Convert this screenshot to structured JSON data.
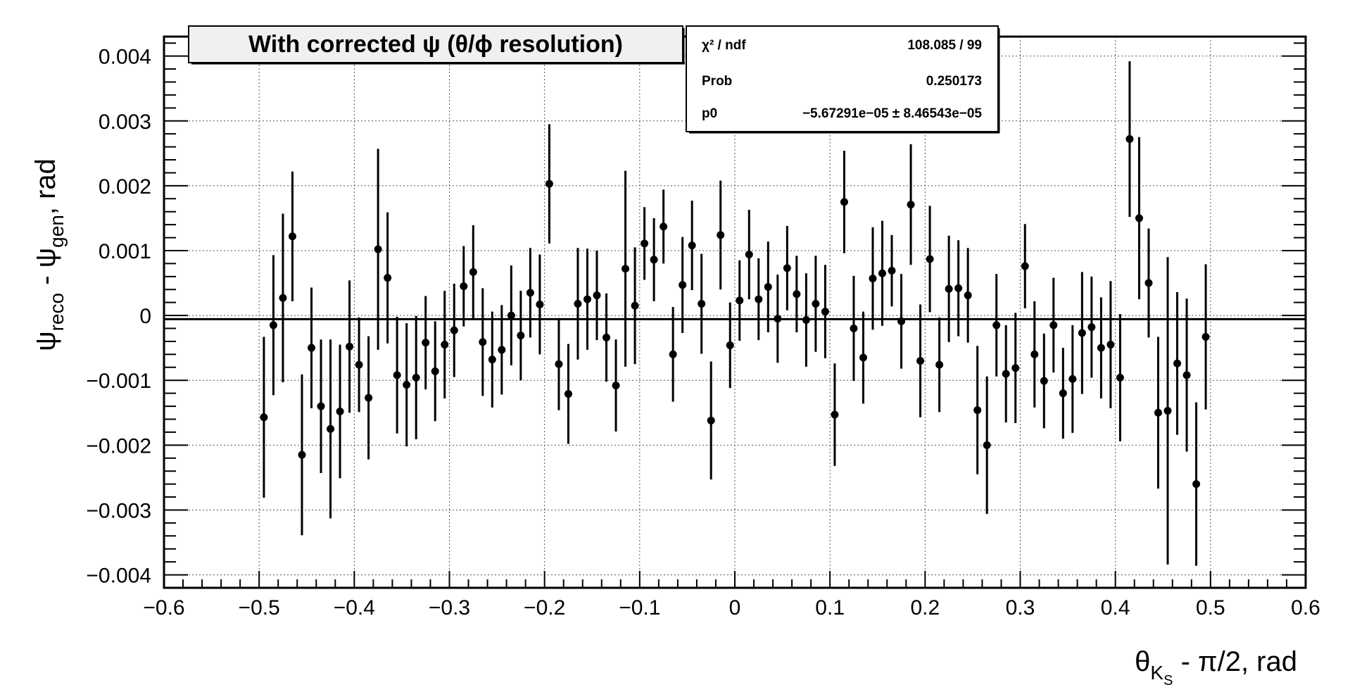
{
  "chart_data": {
    "type": "scatter",
    "title": "With corrected ψ (θ/ϕ resolution)",
    "xlabel": {
      "base": "θ",
      "sub": "K",
      "subsub": "S",
      "rest": " - π/2, rad"
    },
    "ylabel": {
      "p1": "ψ",
      "s1": "reco",
      "p2": " - ψ",
      "s2": "gen",
      "p3": ", rad"
    },
    "xlim": [
      -0.6,
      0.6
    ],
    "ylim": [
      -0.0042,
      0.0043
    ],
    "grid": true,
    "x_ticks": [
      -0.6,
      -0.5,
      -0.4,
      -0.3,
      -0.2,
      -0.1,
      0,
      0.1,
      0.2,
      0.3,
      0.4,
      0.5,
      0.6
    ],
    "x_tick_labels": [
      "−0.6",
      "−0.5",
      "−0.4",
      "−0.3",
      "−0.2",
      "−0.1",
      "0",
      "0.1",
      "0.2",
      "0.3",
      "0.4",
      "0.5",
      "0.6"
    ],
    "y_ticks": [
      -0.004,
      -0.003,
      -0.002,
      -0.001,
      0,
      0.001,
      0.002,
      0.003,
      0.004
    ],
    "y_tick_labels": [
      "−0.004",
      "−0.003",
      "−0.002",
      "−0.001",
      "0",
      "0.001",
      "0.002",
      "0.003",
      "0.004"
    ],
    "fit": {
      "p0": -5.67291e-05
    },
    "stats": [
      {
        "label": "χ² / ndf",
        "value": "108.085 / 99"
      },
      {
        "label": "Prob",
        "value": "0.250173"
      },
      {
        "label": "p0",
        "value": "−5.67291e−05 ± 8.46543e−05"
      }
    ],
    "series": [
      {
        "x": [
          -0.495,
          -0.485,
          -0.475,
          -0.465,
          -0.455,
          -0.445,
          -0.435,
          -0.425,
          -0.415,
          -0.405,
          -0.395,
          -0.385,
          -0.375,
          -0.365,
          -0.355,
          -0.345,
          -0.335,
          -0.325,
          -0.315,
          -0.305,
          -0.295,
          -0.285,
          -0.275,
          -0.265,
          -0.255,
          -0.245,
          -0.235,
          -0.225,
          -0.215,
          -0.205,
          -0.195,
          -0.185,
          -0.175,
          -0.165,
          -0.155,
          -0.145,
          -0.135,
          -0.125,
          -0.115,
          -0.105,
          -0.095,
          -0.085,
          -0.075,
          -0.065,
          -0.055,
          -0.045,
          -0.035,
          -0.025,
          -0.015,
          -0.005,
          0.005,
          0.015,
          0.025,
          0.035,
          0.045,
          0.055,
          0.065,
          0.075,
          0.085,
          0.095,
          0.105,
          0.115,
          0.125,
          0.135,
          0.145,
          0.155,
          0.165,
          0.175,
          0.185,
          0.195,
          0.205,
          0.215,
          0.225,
          0.235,
          0.245,
          0.255,
          0.265,
          0.275,
          0.285,
          0.295,
          0.305,
          0.315,
          0.325,
          0.335,
          0.345,
          0.355,
          0.365,
          0.375,
          0.385,
          0.395,
          0.405,
          0.415,
          0.425,
          0.435,
          0.445,
          0.455,
          0.465,
          0.475,
          0.485,
          0.495
        ],
        "y": [
          -0.00157,
          -0.00015,
          0.00027,
          0.00122,
          -0.00215,
          -0.0005,
          -0.0014,
          -0.00175,
          -0.00148,
          -0.00048,
          -0.00076,
          -0.00127,
          0.00102,
          0.00058,
          -0.00092,
          -0.00107,
          -0.00096,
          -0.00042,
          -0.00086,
          -0.00045,
          -0.00023,
          0.00045,
          0.00067,
          -0.00041,
          -0.00068,
          -0.00053,
          0.0,
          -0.00031,
          0.00035,
          0.00017,
          0.00203,
          -0.00075,
          -0.00121,
          0.00018,
          0.00025,
          0.00031,
          -0.00034,
          -0.00108,
          0.00072,
          0.00015,
          0.00111,
          0.00086,
          0.00137,
          -0.0006,
          0.00047,
          0.00108,
          0.00018,
          -0.00162,
          0.00124,
          -0.00046,
          0.00023,
          0.00094,
          0.00025,
          0.00044,
          -5e-05,
          0.00073,
          0.00033,
          -7e-05,
          0.00018,
          6e-05,
          -0.00153,
          0.00175,
          -0.0002,
          -0.00065,
          0.00057,
          0.00065,
          0.00069,
          -9e-05,
          0.00171,
          -0.0007,
          0.00087,
          -0.00076,
          0.00041,
          0.00042,
          0.00031,
          -0.00146,
          -0.002,
          -0.00015,
          -0.0009,
          -0.00081,
          0.00076,
          -0.0006,
          -0.00101,
          -0.00015,
          -0.0012,
          -0.00098,
          -0.00027,
          -0.00018,
          -0.0005,
          -0.00045,
          -0.00096,
          0.00272,
          0.0015,
          0.0005,
          -0.0015,
          -0.00147,
          -0.00074,
          -0.00092,
          -0.0026,
          -0.00033
        ],
        "yerr": [
          0.00124,
          0.00108,
          0.0013,
          0.001,
          0.00124,
          0.00093,
          0.00103,
          0.00138,
          0.00103,
          0.00102,
          0.00073,
          0.00095,
          0.00155,
          0.00101,
          0.0009,
          0.00095,
          0.00095,
          0.00072,
          0.00077,
          0.00083,
          0.00072,
          0.00062,
          0.00072,
          0.00083,
          0.00074,
          0.00069,
          0.00077,
          0.00069,
          0.00069,
          0.00077,
          0.00092,
          0.00071,
          0.00077,
          0.00086,
          0.00078,
          0.00069,
          0.00068,
          0.00071,
          0.00151,
          0.0009,
          0.00056,
          0.00064,
          0.00057,
          0.00073,
          0.00074,
          0.00069,
          0.00077,
          0.00091,
          0.00084,
          0.00066,
          0.00062,
          0.00069,
          0.00063,
          0.0007,
          0.00068,
          0.00065,
          0.00059,
          0.00072,
          0.00074,
          0.00072,
          0.00079,
          0.00079,
          0.00081,
          0.00071,
          0.00079,
          0.00081,
          0.00055,
          0.00073,
          0.00093,
          0.00087,
          0.00082,
          0.00073,
          0.00082,
          0.00074,
          0.00073,
          0.00099,
          0.00106,
          0.00079,
          0.00075,
          0.00085,
          0.00065,
          0.00082,
          0.00073,
          0.00073,
          0.0007,
          0.00083,
          0.00094,
          0.00078,
          0.00078,
          0.00098,
          0.00098,
          0.0012,
          0.00125,
          0.00084,
          0.00117,
          0.00237,
          0.0011,
          0.00118,
          0.00126,
          0.00112
        ]
      }
    ]
  }
}
